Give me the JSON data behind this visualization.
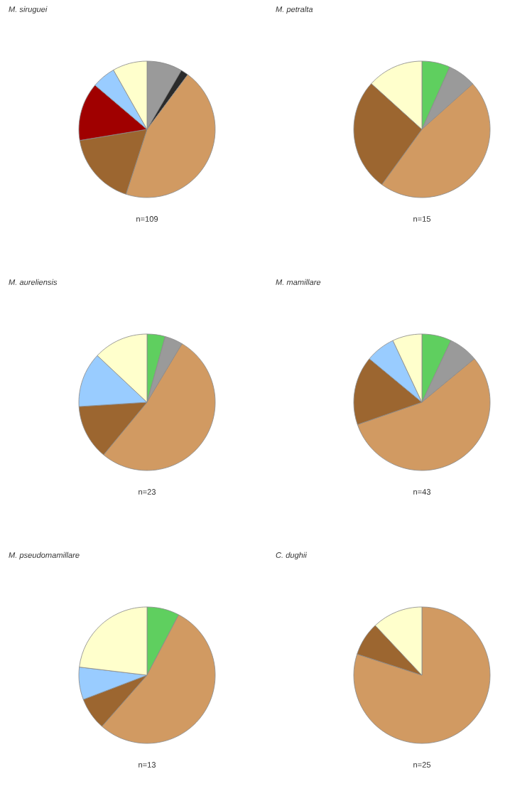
{
  "chart_data": [
    {
      "type": "pie",
      "title": "M. siruguei",
      "categories": [
        null,
        null,
        null,
        null,
        null,
        null,
        null
      ],
      "values": [
        8.4,
        1.8,
        44.8,
        17.4,
        13.8,
        5.6,
        8.2
      ],
      "colors": [
        "#9a9a9a",
        "#2b2b2b",
        "#d19a62",
        "#9c6630",
        "#a00000",
        "#99ccff",
        "#ffffcc"
      ],
      "annotations": [
        "n=109"
      ]
    },
    {
      "type": "pie",
      "title": "M. petralta",
      "categories": [
        null,
        null,
        null,
        null,
        null
      ],
      "values": [
        6.7,
        6.7,
        46.6,
        26.7,
        13.3
      ],
      "colors": [
        "#5fcf5f",
        "#9a9a9a",
        "#d19a62",
        "#9c6630",
        "#ffffcc"
      ],
      "annotations": [
        "n=15"
      ]
    },
    {
      "type": "pie",
      "title": "M. aureliensis",
      "categories": [
        null,
        null,
        null,
        null,
        null,
        null
      ],
      "values": [
        4.3,
        4.3,
        52.4,
        13.0,
        13.0,
        13.0
      ],
      "colors": [
        "#5fcf5f",
        "#9a9a9a",
        "#d19a62",
        "#9c6630",
        "#99ccff",
        "#ffffcc"
      ],
      "annotations": [
        "n=23"
      ]
    },
    {
      "type": "pie",
      "title": "M. mamillare",
      "categories": [
        null,
        null,
        null,
        null,
        null,
        null
      ],
      "values": [
        7.0,
        7.0,
        55.7,
        16.3,
        7.0,
        7.0
      ],
      "colors": [
        "#5fcf5f",
        "#9a9a9a",
        "#d19a62",
        "#9c6630",
        "#99ccff",
        "#ffffcc"
      ],
      "annotations": [
        "n=43"
      ]
    },
    {
      "type": "pie",
      "title": "M. pseudomamillare",
      "categories": [
        null,
        null,
        null,
        null,
        null
      ],
      "values": [
        7.7,
        53.8,
        7.7,
        7.7,
        23.1
      ],
      "colors": [
        "#5fcf5f",
        "#d19a62",
        "#9c6630",
        "#99ccff",
        "#ffffcc"
      ],
      "annotations": [
        "n=13"
      ]
    },
    {
      "type": "pie",
      "title": "C. dughii",
      "categories": [
        null,
        null,
        null
      ],
      "values": [
        80,
        8,
        12
      ],
      "colors": [
        "#d19a62",
        "#9c6630",
        "#ffffcc"
      ],
      "annotations": [
        "n=25"
      ]
    }
  ]
}
